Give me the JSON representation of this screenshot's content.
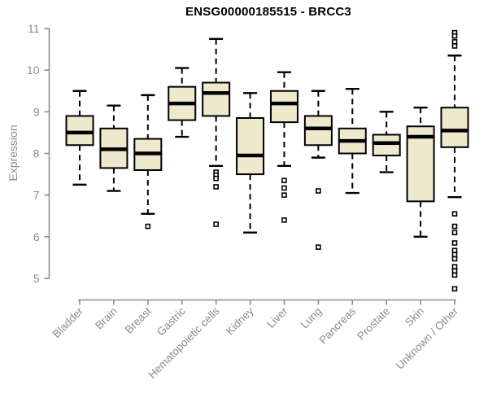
{
  "chart_data": {
    "type": "boxplot",
    "title": "ENSG00000185515 - BRCC3",
    "ylabel": "Expression",
    "xlabel": "",
    "ylim": [
      5,
      11
    ],
    "y_ticks": [
      5,
      6,
      7,
      8,
      9,
      10,
      11
    ],
    "grid": false,
    "legend": "none",
    "categories": [
      "Bladder",
      "Brain",
      "Breast",
      "Gastric",
      "Hematopoietic cells",
      "Kidney",
      "Liver",
      "Lung",
      "Pancreas",
      "Prostate",
      "Skin",
      "Unknown / Other"
    ],
    "series": [
      {
        "category": "Bladder",
        "whisker_low": 7.25,
        "q1": 8.2,
        "median": 8.5,
        "q3": 8.9,
        "whisker_high": 9.5,
        "outliers": []
      },
      {
        "category": "Brain",
        "whisker_low": 7.1,
        "q1": 7.65,
        "median": 8.1,
        "q3": 8.6,
        "whisker_high": 9.15,
        "outliers": []
      },
      {
        "category": "Breast",
        "whisker_low": 6.55,
        "q1": 7.6,
        "median": 8.0,
        "q3": 8.35,
        "whisker_high": 9.4,
        "outliers": [
          6.25
        ]
      },
      {
        "category": "Gastric",
        "whisker_low": 8.4,
        "q1": 8.8,
        "median": 9.2,
        "q3": 9.6,
        "whisker_high": 10.05,
        "outliers": []
      },
      {
        "category": "Hematopoietic cells",
        "whisker_low": 7.7,
        "q1": 8.9,
        "median": 9.45,
        "q3": 9.7,
        "whisker_high": 10.75,
        "outliers": [
          7.55,
          7.48,
          7.4,
          7.2,
          6.3
        ]
      },
      {
        "category": "Kidney",
        "whisker_low": 6.1,
        "q1": 7.5,
        "median": 7.95,
        "q3": 8.85,
        "whisker_high": 9.45,
        "outliers": []
      },
      {
        "category": "Liver",
        "whisker_low": 7.7,
        "q1": 8.75,
        "median": 9.2,
        "q3": 9.5,
        "whisker_high": 9.95,
        "outliers": [
          7.35,
          7.17,
          7.0,
          6.4
        ]
      },
      {
        "category": "Lung",
        "whisker_low": 7.9,
        "q1": 8.2,
        "median": 8.6,
        "q3": 8.9,
        "whisker_high": 9.5,
        "outliers": [
          7.1,
          5.75
        ]
      },
      {
        "category": "Pancreas",
        "whisker_low": 7.05,
        "q1": 8.0,
        "median": 8.3,
        "q3": 8.6,
        "whisker_high": 9.55,
        "outliers": []
      },
      {
        "category": "Prostate",
        "whisker_low": 7.55,
        "q1": 7.95,
        "median": 8.25,
        "q3": 8.45,
        "whisker_high": 9.0,
        "outliers": []
      },
      {
        "category": "Skin",
        "whisker_low": 6.0,
        "q1": 6.85,
        "median": 8.4,
        "q3": 8.65,
        "whisker_high": 9.1,
        "outliers": []
      },
      {
        "category": "Unknown / Other",
        "whisker_low": 6.95,
        "q1": 8.15,
        "median": 8.55,
        "q3": 9.1,
        "whisker_high": 10.35,
        "outliers": [
          10.9,
          10.82,
          10.68,
          10.58,
          6.55,
          6.25,
          6.1,
          5.85,
          5.67,
          5.57,
          5.47,
          5.28,
          5.18,
          5.08,
          4.75
        ]
      }
    ],
    "colors": {
      "box_fill": "#EEE8CD",
      "box_border": "#000000",
      "median": "#000000",
      "whisker": "#000000",
      "axis": "#8C8C8C",
      "tick_text": "#8C8C8C",
      "title_text": "#000000",
      "background": "#FFFFFF"
    }
  }
}
